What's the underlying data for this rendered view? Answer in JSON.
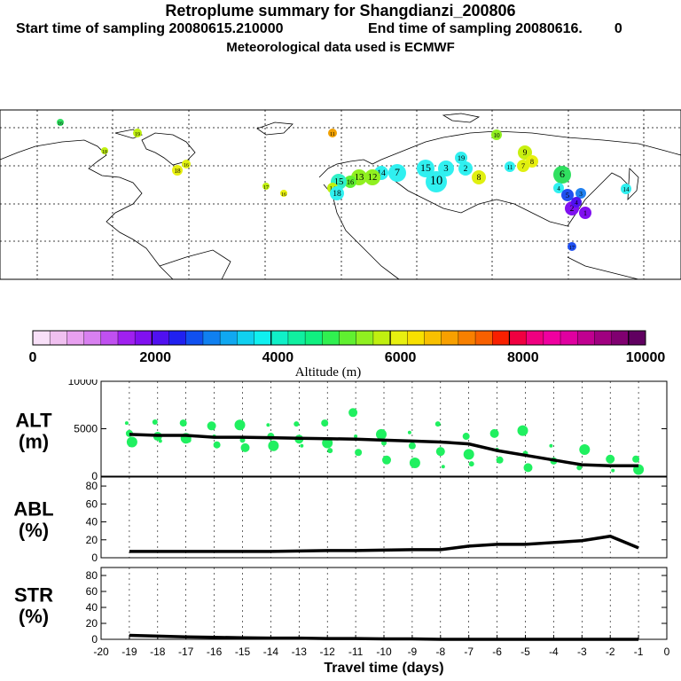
{
  "header": {
    "title": "Retroplume summary for Shangdianzi_200806",
    "start_label": "Start time of sampling 20080615.210000",
    "end_label": "End time of sampling 20080616.",
    "end_suffix": "0",
    "met_label": "Meteorological data used is ECMWF"
  },
  "colorbar": {
    "ticks": [
      "0",
      "2000",
      "4000",
      "6000",
      "8000",
      "10000"
    ],
    "label": "Altitude (m)",
    "colors": [
      "#f8e0f8",
      "#f0c0f0",
      "#e8a0f0",
      "#d880f0",
      "#c050f0",
      "#a020f0",
      "#8010f0",
      "#5010f0",
      "#2020f0",
      "#1050f0",
      "#1080f0",
      "#10a8f0",
      "#10d0f0",
      "#10f0f0",
      "#10f0c8",
      "#10f0a0",
      "#10f080",
      "#30f050",
      "#60f030",
      "#90f020",
      "#c0f010",
      "#e8f010",
      "#f8e000",
      "#f8c000",
      "#f8a000",
      "#f88000",
      "#f86000",
      "#f82000",
      "#f00040",
      "#f00080",
      "#f000a0",
      "#e000a0",
      "#c00090",
      "#a00080",
      "#800070",
      "#600060"
    ]
  },
  "map_labels": [
    "1",
    "2",
    "3",
    "4",
    "5",
    "6",
    "7",
    "8",
    "9",
    "10",
    "11",
    "12",
    "13",
    "14",
    "15",
    "16",
    "17",
    "18",
    "19",
    "20"
  ],
  "chart_data": [
    {
      "type": "line",
      "panel": "ALT",
      "ylabel": "ALT (m)",
      "ylim": [
        0,
        10000
      ],
      "yticks": [
        "10000",
        "5000",
        "0"
      ],
      "x": [
        -19,
        -18,
        -17,
        -16,
        -15,
        -14,
        -13,
        -12,
        -11,
        -10,
        -9,
        -8,
        -7,
        -6,
        -5,
        -4,
        -3,
        -2,
        -1
      ],
      "values": [
        4400,
        4300,
        4300,
        4100,
        4100,
        4050,
        4000,
        3950,
        3900,
        3800,
        3700,
        3600,
        3400,
        2700,
        2200,
        1700,
        1200,
        1100,
        1100
      ],
      "scatter_color": "#20f060",
      "scatter_points": [
        [
          -19,
          5600
        ],
        [
          -19,
          4500
        ],
        [
          -19,
          3600
        ],
        [
          -18,
          5700
        ],
        [
          -18,
          4200
        ],
        [
          -18,
          3700
        ],
        [
          -17,
          5600
        ],
        [
          -17,
          4000
        ],
        [
          -17,
          3800
        ],
        [
          -16,
          5300
        ],
        [
          -16,
          4200
        ],
        [
          -16,
          3300
        ],
        [
          -15,
          5400
        ],
        [
          -15,
          3800
        ],
        [
          -15,
          3000
        ],
        [
          -14,
          5400
        ],
        [
          -14,
          4200
        ],
        [
          -14,
          3200
        ],
        [
          -13,
          5500
        ],
        [
          -13,
          3900
        ],
        [
          -13,
          3200
        ],
        [
          -12,
          5600
        ],
        [
          -12,
          3500
        ],
        [
          -12,
          2700
        ],
        [
          -11,
          6700
        ],
        [
          -11,
          4200
        ],
        [
          -11,
          2500
        ],
        [
          -10,
          4400
        ],
        [
          -10,
          3500
        ],
        [
          -10,
          1700
        ],
        [
          -9,
          4600
        ],
        [
          -9,
          3200
        ],
        [
          -9,
          1400
        ],
        [
          -8,
          5500
        ],
        [
          -8,
          2600
        ],
        [
          -8,
          1000
        ],
        [
          -7,
          4200
        ],
        [
          -7,
          2300
        ],
        [
          -7,
          1300
        ],
        [
          -6,
          4500
        ],
        [
          -6,
          2800
        ],
        [
          -6,
          1700
        ],
        [
          -5,
          4800
        ],
        [
          -5,
          2400
        ],
        [
          -5,
          900
        ],
        [
          -4,
          3200
        ],
        [
          -4,
          1600
        ],
        [
          -3,
          2800
        ],
        [
          -3,
          900
        ],
        [
          -2,
          1800
        ],
        [
          -2,
          600
        ],
        [
          -1,
          1800
        ],
        [
          -1,
          700
        ]
      ]
    },
    {
      "type": "line",
      "panel": "ABL",
      "ylabel": "ABL (%)",
      "ylim": [
        0,
        90
      ],
      "yticks": [
        "80",
        "60",
        "40",
        "20",
        "0"
      ],
      "x": [
        -19,
        -18,
        -17,
        -16,
        -15,
        -14,
        -13,
        -12,
        -11,
        -10,
        -9,
        -8,
        -7,
        -6,
        -5,
        -4,
        -3,
        -2,
        -1
      ],
      "values": [
        7,
        7,
        7,
        7,
        7,
        7,
        7.5,
        8,
        8,
        8.5,
        9,
        9,
        13,
        15,
        15,
        17,
        19,
        24,
        11
      ]
    },
    {
      "type": "line",
      "panel": "STR",
      "ylabel": "STR (%)",
      "ylim": [
        0,
        90
      ],
      "yticks": [
        "80",
        "60",
        "40",
        "20",
        "0"
      ],
      "x": [
        -19,
        -18,
        -17,
        -16,
        -15,
        -14,
        -13,
        -12,
        -11,
        -10,
        -9,
        -8,
        -7,
        -6,
        -5,
        -4,
        -3,
        -2,
        -1
      ],
      "values": [
        5,
        4,
        3,
        2.5,
        2,
        1.5,
        1.5,
        1,
        1,
        0.5,
        0.5,
        0,
        0,
        0,
        0,
        0,
        0,
        0,
        0
      ]
    }
  ],
  "xaxis": {
    "label": "Travel time (days)",
    "ticks": [
      "-20",
      "-19",
      "-18",
      "-17",
      "-16",
      "-15",
      "-14",
      "-13",
      "-12",
      "-11",
      "-10",
      "-9",
      "-8",
      "-7",
      "-6",
      "-5",
      "-4",
      "-3",
      "-2",
      "-1",
      "0"
    ]
  }
}
